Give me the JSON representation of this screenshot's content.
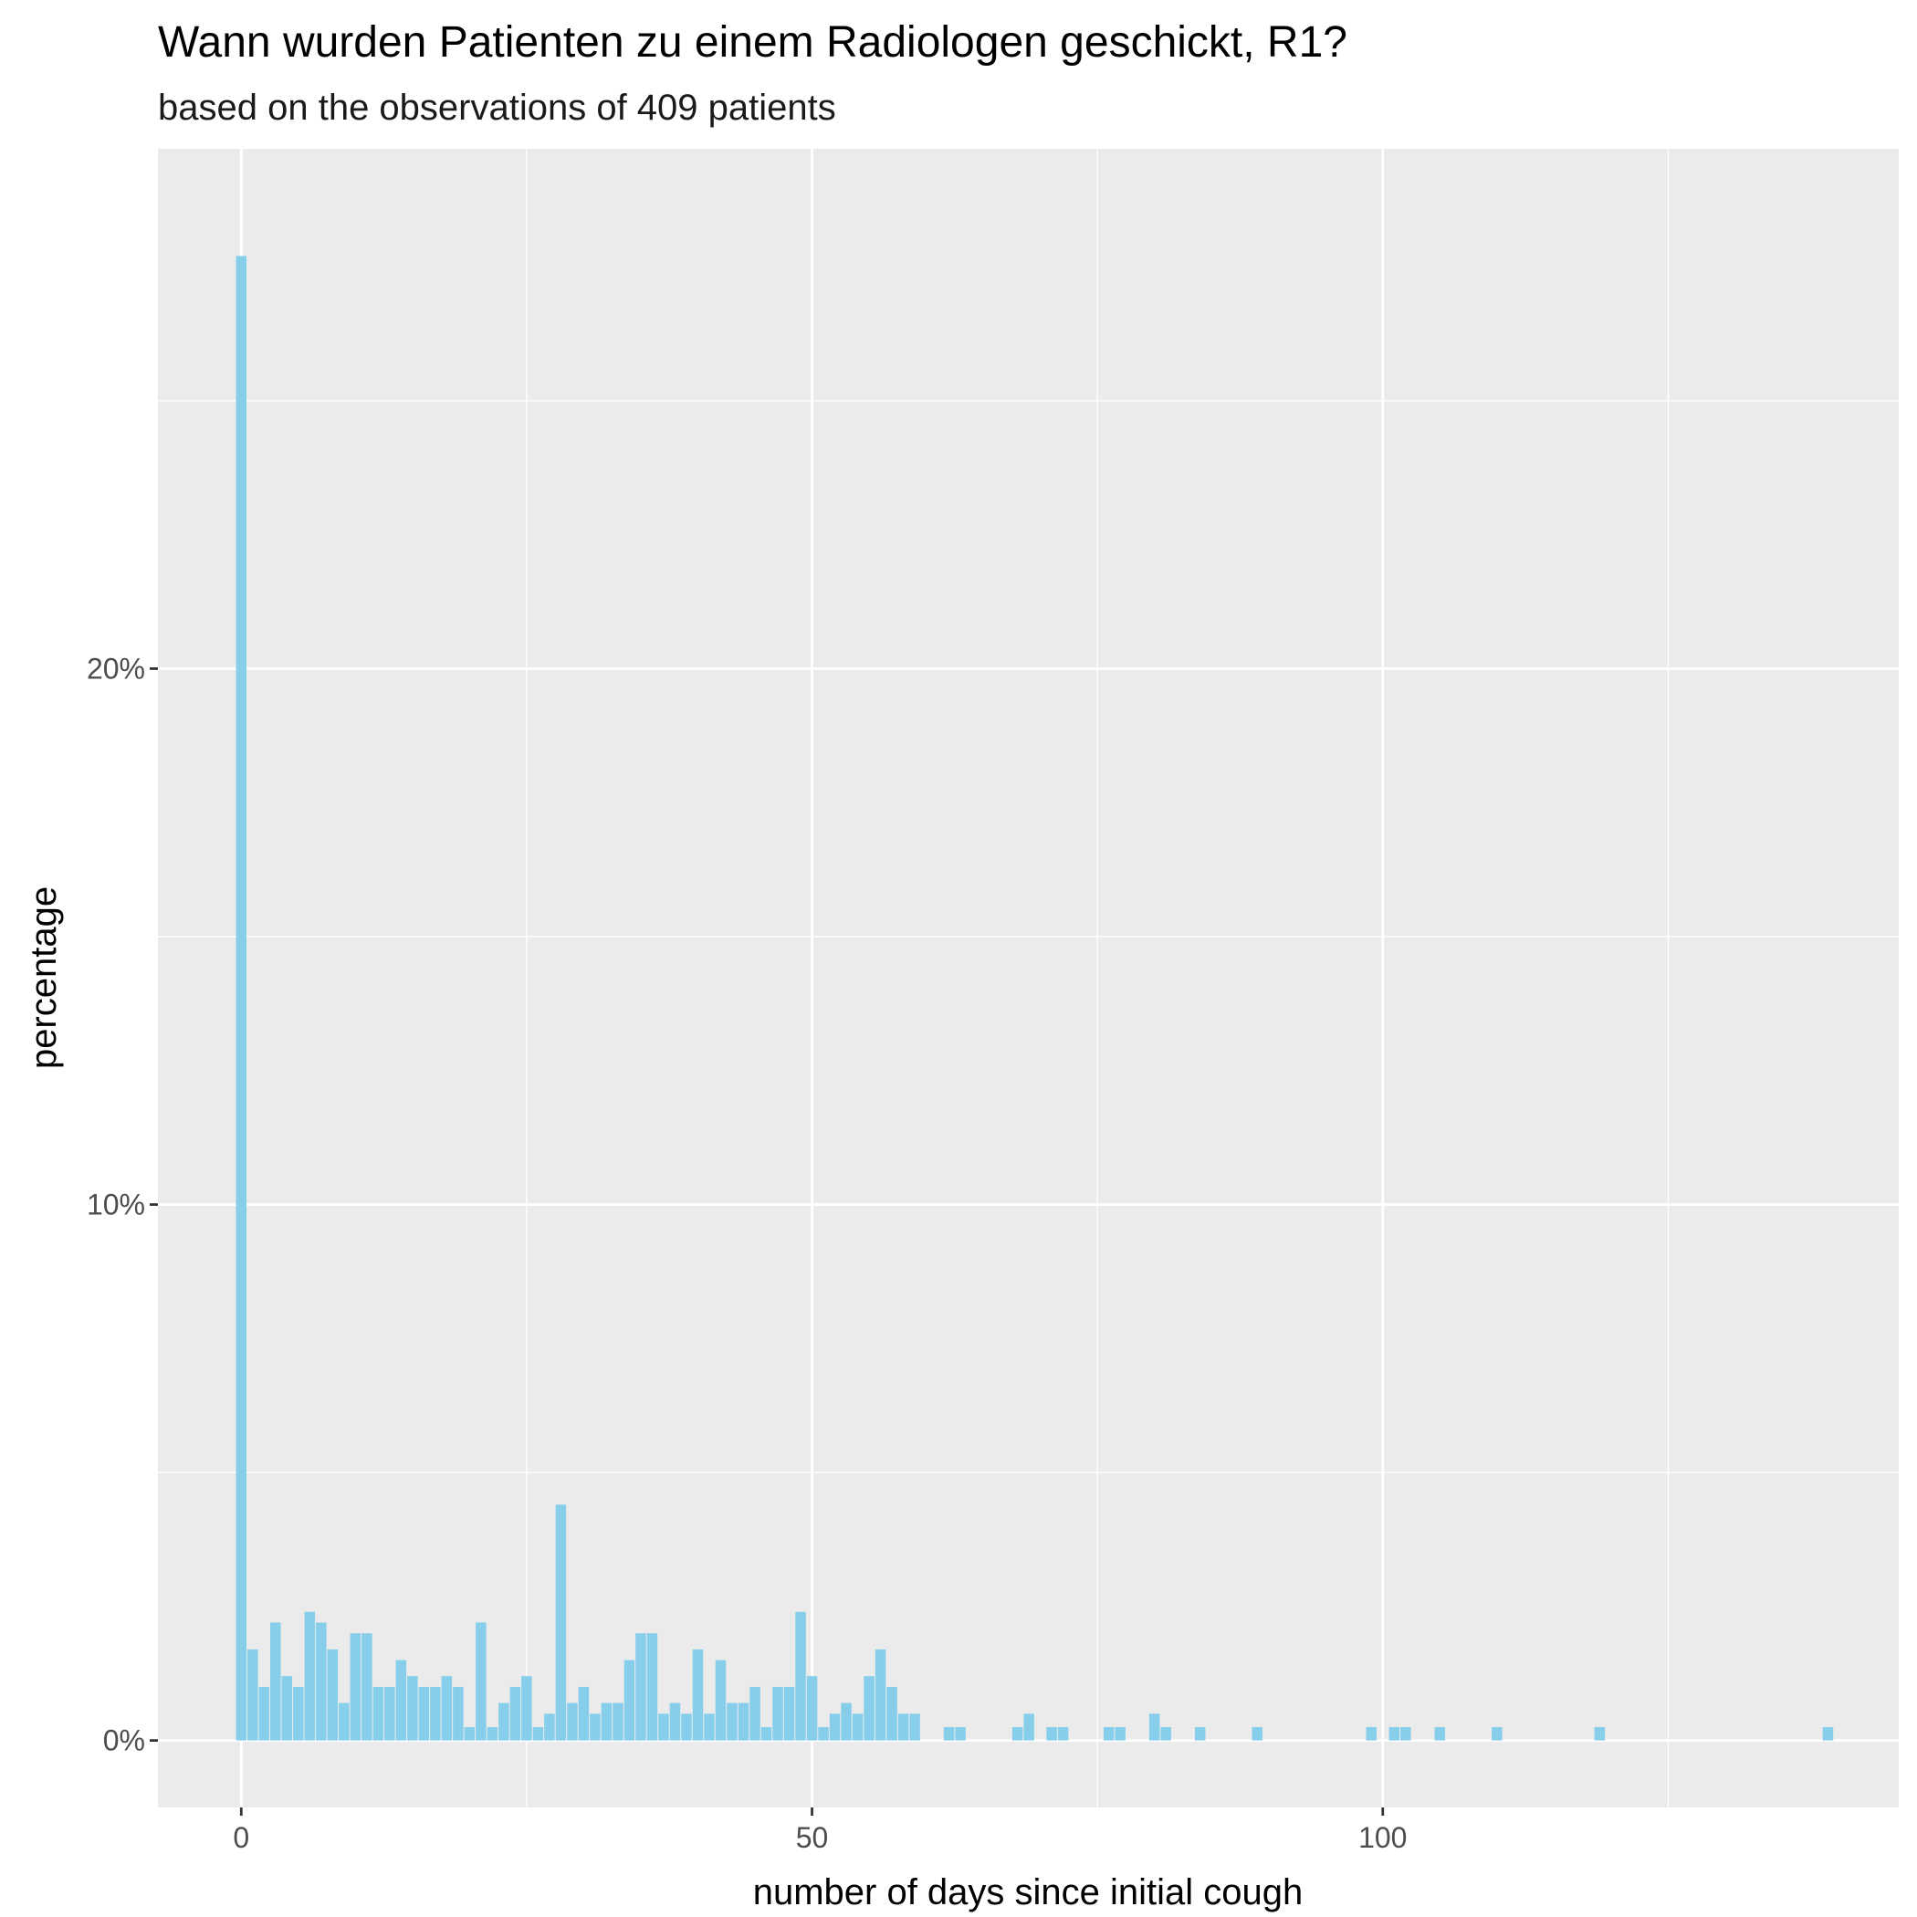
{
  "chart_data": {
    "type": "bar",
    "title": "Wann wurden Patienten zu einem Radiologen geschickt, R1?",
    "subtitle": "based on the observations of 409 patients",
    "xlabel": "number of days since initial cough",
    "ylabel": "percentage",
    "xlim": [
      -7.3,
      145.2
    ],
    "ylim": [
      -1.25,
      29.7
    ],
    "x_ticks": [
      {
        "value": 0,
        "label": "0"
      },
      {
        "value": 50,
        "label": "50"
      },
      {
        "value": 100,
        "label": "100"
      }
    ],
    "y_ticks": [
      {
        "value": 0,
        "label": "0%"
      },
      {
        "value": 10,
        "label": "10%"
      },
      {
        "value": 20,
        "label": "20%"
      }
    ],
    "grid": true,
    "bar_color": "#87CEEB",
    "panel_color": "#EBEBEB",
    "grid_color": "#FFFFFF",
    "x": [
      0,
      1,
      2,
      3,
      4,
      5,
      6,
      7,
      8,
      9,
      10,
      11,
      12,
      13,
      14,
      15,
      16,
      17,
      18,
      19,
      20,
      21,
      22,
      23,
      24,
      25,
      26,
      27,
      28,
      29,
      30,
      31,
      32,
      33,
      34,
      35,
      36,
      37,
      38,
      39,
      40,
      41,
      42,
      43,
      44,
      45,
      46,
      47,
      48,
      49,
      50,
      51,
      52,
      53,
      54,
      55,
      56,
      57,
      58,
      59,
      62,
      63,
      68,
      69,
      71,
      72,
      76,
      77,
      80,
      81,
      84,
      89,
      99,
      101,
      102,
      105,
      110,
      119,
      139
    ],
    "values": [
      27.7,
      1.7,
      1.0,
      2.2,
      1.2,
      1.0,
      2.4,
      2.2,
      1.7,
      0.7,
      2.0,
      2.0,
      1.0,
      1.0,
      1.5,
      1.2,
      1.0,
      1.0,
      1.2,
      1.0,
      0.25,
      2.2,
      0.25,
      0.7,
      1.0,
      1.2,
      0.25,
      0.5,
      4.4,
      0.7,
      1.0,
      0.5,
      0.7,
      0.7,
      1.5,
      2.0,
      2.0,
      0.5,
      0.7,
      0.5,
      1.7,
      0.5,
      1.5,
      0.7,
      0.7,
      1.0,
      0.25,
      1.0,
      1.0,
      2.4,
      1.2,
      0.25,
      0.5,
      0.7,
      0.5,
      1.2,
      1.7,
      1.0,
      0.5,
      0.5,
      0.25,
      0.25,
      0.25,
      0.5,
      0.25,
      0.25,
      0.25,
      0.25,
      0.5,
      0.25,
      0.25,
      0.25,
      0.25,
      0.25,
      0.25,
      0.25,
      0.25,
      0.25,
      0.25
    ]
  }
}
